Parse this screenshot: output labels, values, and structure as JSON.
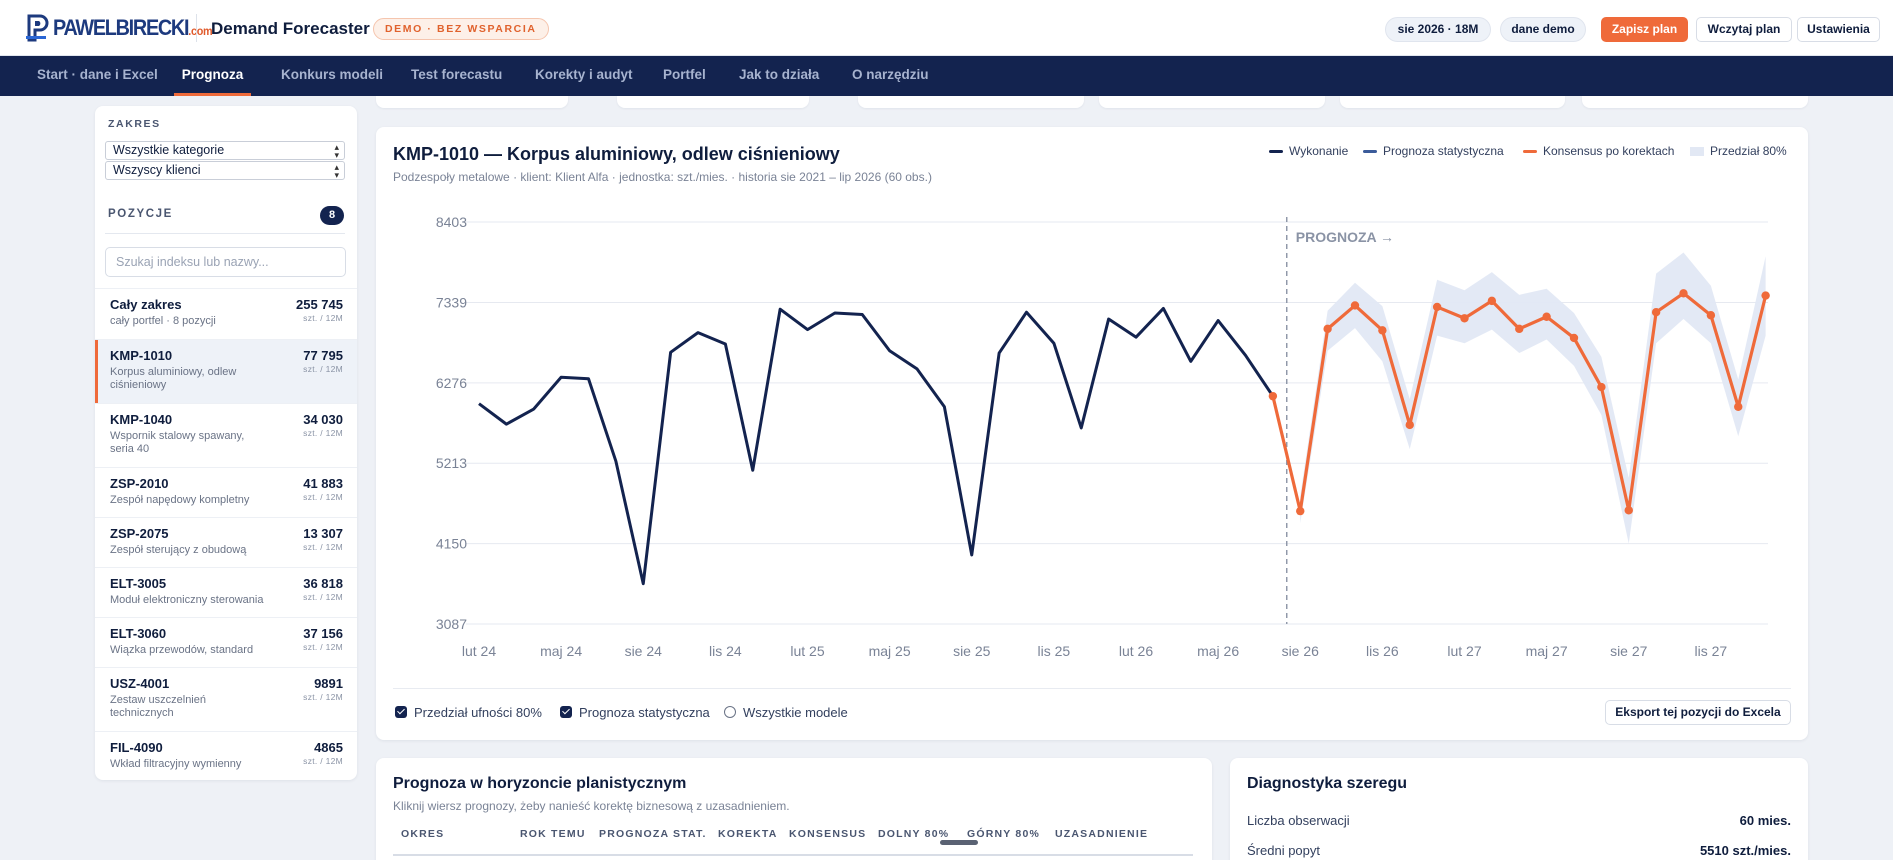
{
  "header": {
    "logo_main": "PAWELBIRECKI",
    "logo_com": ".com",
    "app_title": "Demand Forecaster",
    "demo_badge": "DEMO · BEZ WSPARCIA",
    "horizon_pill": "sie 2026 · 18M",
    "data_pill": "dane demo",
    "save_label": "Zapisz plan",
    "load_label": "Wczytaj plan",
    "settings_label": "Ustawienia",
    "accent_color": "#ef6a3a",
    "navy_color": "#13234f"
  },
  "nav": {
    "tabs": [
      {
        "label": "Start · dane i Excel"
      },
      {
        "label": "Prognoza"
      },
      {
        "label": "Konkurs modeli"
      },
      {
        "label": "Test forecastu"
      },
      {
        "label": "Korekty i audyt"
      },
      {
        "label": "Portfel"
      },
      {
        "label": "Jak to działa"
      },
      {
        "label": "O narzędziu"
      }
    ],
    "active": "Prognoza"
  },
  "sidebar": {
    "range_label": "ZAKRES",
    "category_select": "Wszystkie kategorie",
    "client_select": "Wszyscy klienci",
    "positions_label": "POZYCJE",
    "positions_count": "8",
    "search_placeholder": "Szukaj indeksu lub nazwy...",
    "items": [
      {
        "code": "Cały zakres",
        "name": "cały portfel · 8 pozycji",
        "qty": "255 745",
        "unit": "szt. / 12M"
      },
      {
        "code": "KMP-1010",
        "name": "Korpus aluminiowy, odlew ciśnieniowy",
        "qty": "77 795",
        "unit": "szt. / 12M"
      },
      {
        "code": "KMP-1040",
        "name": "Wspornik stalowy spawany, seria 40",
        "qty": "34 030",
        "unit": "szt. / 12M"
      },
      {
        "code": "ZSP-2010",
        "name": "Zespół napędowy kompletny",
        "qty": "41 883",
        "unit": "szt. / 12M"
      },
      {
        "code": "ZSP-2075",
        "name": "Zespół sterujący z obudową",
        "qty": "13 307",
        "unit": "szt. / 12M"
      },
      {
        "code": "ELT-3005",
        "name": "Moduł elektroniczny sterowania",
        "qty": "36 818",
        "unit": "szt. / 12M"
      },
      {
        "code": "ELT-3060",
        "name": "Wiązka przewodów, standard",
        "qty": "37 156",
        "unit": "szt. / 12M"
      },
      {
        "code": "USZ-4001",
        "name": "Zestaw uszczelnień technicznych",
        "qty": "9891",
        "unit": "szt. / 12M"
      },
      {
        "code": "FIL-4090",
        "name": "Wkład filtracyjny wymienny",
        "qty": "4865",
        "unit": "szt. / 12M"
      }
    ]
  },
  "main_chart": {
    "title": "KMP-1010 — Korpus aluminiowy, odlew ciśnieniowy",
    "subtitle": "Podzespoły metalowe · klient: Klient Alfa · jednostka: szt./mies. · historia sie 2021 – lip 2026 (60 obs.)",
    "legend": [
      "Wykonanie",
      "Prognoza statystyczna",
      "Konsensus po korektach",
      "Przedział 80%"
    ],
    "forecast_marker": "PROGNOZA →",
    "checkboxes": [
      {
        "label": "Przedział ufności 80%",
        "checked": true
      },
      {
        "label": "Prognoza statystyczna",
        "checked": true
      },
      {
        "label": "Wszystkie modele",
        "checked": false
      }
    ],
    "export_label": "Eksport tej pozycji do Excela"
  },
  "chart_data": {
    "type": "line",
    "x_tick_labels": [
      "lut 24",
      "maj 24",
      "sie 24",
      "lis 24",
      "lut 25",
      "maj 25",
      "sie 25",
      "lis 25",
      "lut 26",
      "maj 26",
      "sie 26",
      "lis 26",
      "lut 27",
      "maj 27",
      "sie 27",
      "lis 27"
    ],
    "y_ticks": [
      3087,
      4150,
      5213,
      6276,
      7339,
      8403
    ],
    "ylim": [
      3087,
      8403
    ],
    "x_start": "lut 24",
    "forecast_start": "sie 26",
    "grid": true,
    "legend_position": "top-right",
    "colors": {
      "actual": "#13234f",
      "stat_forecast": "#3b5b9a",
      "consensus": "#ef6a3a",
      "interval": "#e2e8f4"
    },
    "series": [
      {
        "name": "Wykonanie",
        "x_index_start": 0,
        "values": [
          6000,
          5730,
          5930,
          6350,
          6330,
          5240,
          3620,
          6680,
          6940,
          6790,
          5120,
          7250,
          6980,
          7200,
          7180,
          6700,
          6460,
          5960,
          4000,
          6670,
          7210,
          6800,
          5680,
          7120,
          6880,
          7260,
          6560,
          7100,
          6640,
          6100
        ]
      },
      {
        "name": "Konsensus po korektach",
        "x_index_start": 29,
        "values": [
          6100,
          4580,
          6990,
          7300,
          6970,
          5720,
          7280,
          7130,
          7360,
          6990,
          7150,
          6870,
          6220,
          4590,
          7210,
          7460,
          7170,
          5960,
          7430
        ]
      },
      {
        "name": "Przedział 80%",
        "x_index_start": 30,
        "lower": [
          4420,
          6700,
          7000,
          6560,
          5400,
          6900,
          6800,
          6980,
          6670,
          6850,
          6500,
          5850,
          4150,
          6800,
          7120,
          6800,
          5570,
          6900
        ],
        "upper": [
          4780,
          7230,
          7600,
          7290,
          6060,
          7640,
          7500,
          7740,
          7440,
          7520,
          7200,
          6620,
          5020,
          7720,
          8000,
          7560,
          6320,
          7950
        ]
      }
    ]
  },
  "horizon": {
    "title": "Prognoza w horyzoncie planistycznym",
    "subtitle": "Kliknij wiersz prognozy, żeby nanieść korektę biznesową z uzasadnieniem.",
    "columns": [
      "OKRES",
      "ROK TEMU",
      "PROGNOZA STAT.",
      "KOREKTA",
      "KONSENSUS",
      "DOLNY 80%",
      "GÓRNY 80%",
      "UZASADNIENIE"
    ]
  },
  "diagnostics": {
    "title": "Diagnostyka szeregu",
    "rows": [
      {
        "label": "Liczba obserwacji",
        "value": "60 mies."
      },
      {
        "label": "Średni popyt",
        "value": "5510 szt./mies."
      }
    ]
  }
}
